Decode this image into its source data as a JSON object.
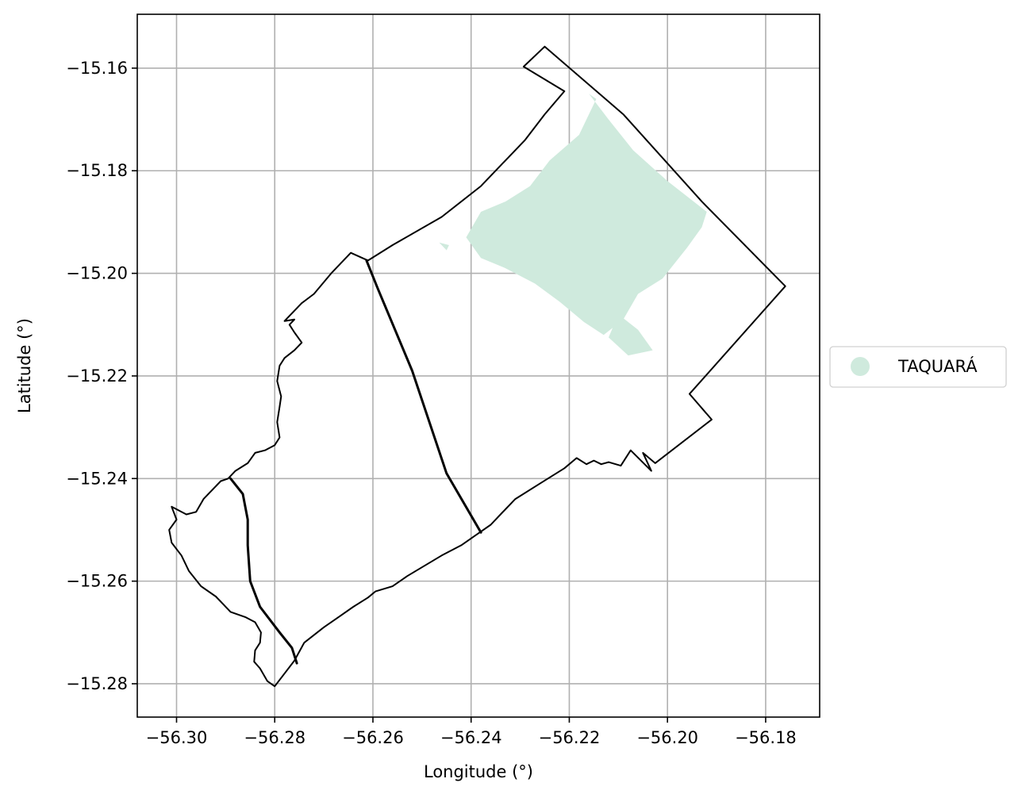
{
  "axes": {
    "xlabel": "Longitude (°)",
    "ylabel": "Latitude (°)",
    "xlim": [
      -56.308,
      -56.169
    ],
    "ylim": [
      -15.2865,
      -15.1495
    ],
    "xticks": [
      {
        "value": -56.3,
        "label": "−56.30"
      },
      {
        "value": -56.28,
        "label": "−56.28"
      },
      {
        "value": -56.26,
        "label": "−56.26"
      },
      {
        "value": -56.24,
        "label": "−56.24"
      },
      {
        "value": -56.22,
        "label": "−56.22"
      },
      {
        "value": -56.2,
        "label": "−56.20"
      },
      {
        "value": -56.18,
        "label": "−56.18"
      }
    ],
    "yticks": [
      {
        "value": -15.16,
        "label": "−15.16"
      },
      {
        "value": -15.18,
        "label": "−15.18"
      },
      {
        "value": -15.2,
        "label": "−15.20"
      },
      {
        "value": -15.22,
        "label": "−15.22"
      },
      {
        "value": -15.24,
        "label": "−15.24"
      },
      {
        "value": -15.26,
        "label": "−15.26"
      },
      {
        "value": -15.28,
        "label": "−15.28"
      }
    ],
    "grid": true
  },
  "legend": {
    "placement": "right-center",
    "items": [
      {
        "label": "TAQUARÁ",
        "color": "#cfeadd"
      }
    ]
  },
  "colors": {
    "boundary": "#000000",
    "fill": "#cfeadd",
    "grid": "#b0b0b0"
  },
  "map_data": {
    "outer_boundary": [
      [
        -56.2293,
        -15.1597
      ],
      [
        -56.225,
        -15.1558
      ],
      [
        -56.209,
        -15.169
      ],
      [
        -56.193,
        -15.186
      ],
      [
        -56.176,
        -15.2025
      ],
      [
        -56.1955,
        -15.2235
      ],
      [
        -56.191,
        -15.2285
      ],
      [
        -56.2025,
        -15.237
      ],
      [
        -56.205,
        -15.235
      ],
      [
        -56.2033,
        -15.2385
      ],
      [
        -56.2075,
        -15.2345
      ],
      [
        -56.2095,
        -15.2375
      ],
      [
        -56.212,
        -15.2368
      ],
      [
        -56.2135,
        -15.2372
      ],
      [
        -56.215,
        -15.2365
      ],
      [
        -56.2165,
        -15.2372
      ],
      [
        -56.2185,
        -15.236
      ],
      [
        -56.221,
        -15.238
      ],
      [
        -56.226,
        -15.241
      ],
      [
        -56.231,
        -15.244
      ],
      [
        -56.234,
        -15.247
      ],
      [
        -56.236,
        -15.249
      ],
      [
        -56.239,
        -15.251
      ],
      [
        -56.242,
        -15.253
      ],
      [
        -56.246,
        -15.255
      ],
      [
        -56.253,
        -15.259
      ],
      [
        -56.256,
        -15.261
      ],
      [
        -56.2595,
        -15.262
      ],
      [
        -56.261,
        -15.2632
      ],
      [
        -56.264,
        -15.265
      ],
      [
        -56.267,
        -15.267
      ],
      [
        -56.27,
        -15.269
      ],
      [
        -56.274,
        -15.272
      ],
      [
        -56.276,
        -15.2755
      ],
      [
        -56.28,
        -15.2805
      ],
      [
        -56.2815,
        -15.2795
      ],
      [
        -56.283,
        -15.277
      ],
      [
        -56.2842,
        -15.2757
      ],
      [
        -56.284,
        -15.2735
      ],
      [
        -56.283,
        -15.272
      ],
      [
        -56.2828,
        -15.27
      ],
      [
        -56.284,
        -15.268
      ],
      [
        -56.286,
        -15.267
      ],
      [
        -56.289,
        -15.266
      ],
      [
        -56.292,
        -15.263
      ],
      [
        -56.295,
        -15.261
      ],
      [
        -56.2975,
        -15.258
      ],
      [
        -56.299,
        -15.255
      ],
      [
        -56.301,
        -15.2525
      ],
      [
        -56.3015,
        -15.25
      ],
      [
        -56.3,
        -15.248
      ],
      [
        -56.301,
        -15.2455
      ],
      [
        -56.298,
        -15.247
      ],
      [
        -56.296,
        -15.2465
      ],
      [
        -56.2945,
        -15.244
      ],
      [
        -56.2925,
        -15.242
      ],
      [
        -56.291,
        -15.2405
      ],
      [
        -56.2895,
        -15.24
      ],
      [
        -56.288,
        -15.2385
      ],
      [
        -56.2855,
        -15.237
      ],
      [
        -56.284,
        -15.235
      ],
      [
        -56.282,
        -15.2345
      ],
      [
        -56.28,
        -15.2335
      ],
      [
        -56.279,
        -15.232
      ],
      [
        -56.2795,
        -15.229
      ],
      [
        -56.279,
        -15.226
      ],
      [
        -56.2787,
        -15.224
      ],
      [
        -56.2795,
        -15.221
      ],
      [
        -56.279,
        -15.218
      ],
      [
        -56.278,
        -15.2165
      ],
      [
        -56.276,
        -15.215
      ],
      [
        -56.2745,
        -15.2135
      ],
      [
        -56.276,
        -15.2115
      ],
      [
        -56.277,
        -15.21
      ],
      [
        -56.276,
        -15.209
      ],
      [
        -56.278,
        -15.2093
      ],
      [
        -56.2745,
        -15.2058
      ],
      [
        -56.272,
        -15.204
      ],
      [
        -56.2685,
        -15.2
      ],
      [
        -56.2645,
        -15.196
      ],
      [
        -56.261,
        -15.1975
      ],
      [
        -56.256,
        -15.1945
      ],
      [
        -56.246,
        -15.189
      ],
      [
        -56.238,
        -15.183
      ],
      [
        -56.229,
        -15.174
      ],
      [
        -56.225,
        -15.169
      ],
      [
        -56.221,
        -15.1645
      ],
      [
        -56.2293,
        -15.1597
      ]
    ],
    "internal_lines": [
      {
        "width": 3,
        "points": [
          [
            -56.2613,
            -15.1975
          ],
          [
            -56.259,
            -15.203
          ],
          [
            -56.252,
            -15.219
          ],
          [
            -56.245,
            -15.239
          ],
          [
            -56.238,
            -15.2505
          ]
        ]
      },
      {
        "width": 3,
        "points": [
          [
            -56.289,
            -15.24
          ],
          [
            -56.2865,
            -15.243
          ],
          [
            -56.2855,
            -15.248
          ],
          [
            -56.2855,
            -15.253
          ],
          [
            -56.285,
            -15.26
          ],
          [
            -56.283,
            -15.265
          ],
          [
            -56.279,
            -15.27
          ],
          [
            -56.2765,
            -15.273
          ],
          [
            -56.2755,
            -15.276
          ]
        ]
      }
    ],
    "filled_regions": [
      {
        "name": "TAQUARÁ",
        "points": [
          [
            -56.2145,
            -15.166
          ],
          [
            -56.216,
            -15.165
          ],
          [
            -56.212,
            -15.17
          ],
          [
            -56.207,
            -15.176
          ],
          [
            -56.2,
            -15.182
          ],
          [
            -56.192,
            -15.188
          ],
          [
            -56.193,
            -15.191
          ],
          [
            -56.196,
            -15.195
          ],
          [
            -56.201,
            -15.201
          ],
          [
            -56.206,
            -15.204
          ],
          [
            -56.209,
            -15.209
          ],
          [
            -56.213,
            -15.212
          ],
          [
            -56.217,
            -15.2095
          ],
          [
            -56.222,
            -15.2055
          ],
          [
            -56.227,
            -15.202
          ],
          [
            -56.233,
            -15.199
          ],
          [
            -56.238,
            -15.197
          ],
          [
            -56.241,
            -15.193
          ],
          [
            -56.238,
            -15.188
          ],
          [
            -56.233,
            -15.186
          ],
          [
            -56.228,
            -15.183
          ],
          [
            -56.224,
            -15.178
          ],
          [
            -56.218,
            -15.173
          ]
        ]
      },
      {
        "name": "TAQUARÁ",
        "points": [
          [
            -56.245,
            -15.1955
          ],
          [
            -56.2465,
            -15.194
          ],
          [
            -56.2445,
            -15.1945
          ]
        ]
      },
      {
        "name": "TAQUARÁ",
        "points": [
          [
            -56.21,
            -15.208
          ],
          [
            -56.206,
            -15.211
          ],
          [
            -56.203,
            -15.215
          ],
          [
            -56.208,
            -15.216
          ],
          [
            -56.212,
            -15.2125
          ]
        ]
      }
    ]
  }
}
